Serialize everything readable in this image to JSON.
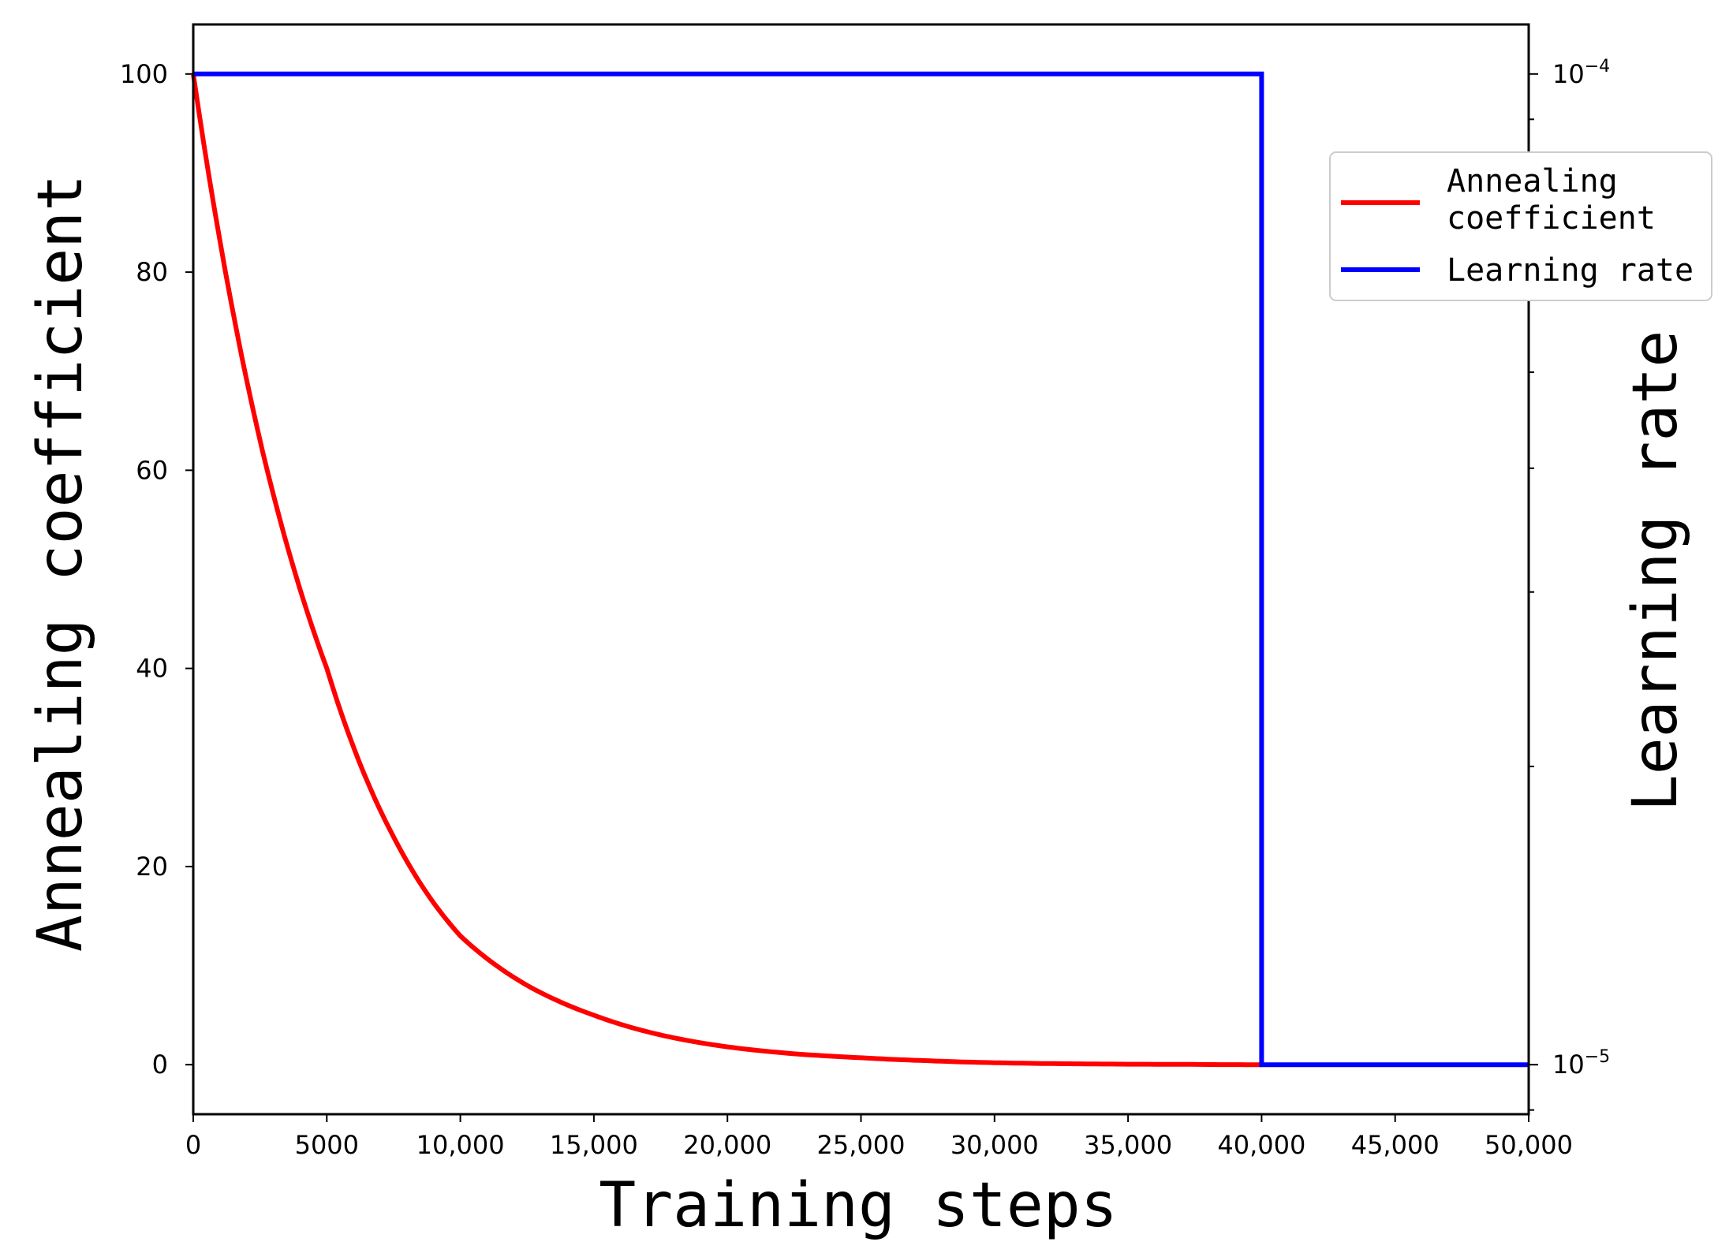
{
  "chart_data": {
    "type": "line",
    "xlabel": "Training steps",
    "ylabel_left": "Annealing coefficient",
    "ylabel_right": "Learning rate",
    "xlim": [
      0,
      50000
    ],
    "ylim_left": [
      -5,
      105
    ],
    "ylim_right": [
      1e-05,
      0.0001
    ],
    "y_right_scale": "log",
    "x_ticks": [
      {
        "value": 0,
        "label": "0"
      },
      {
        "value": 5000,
        "label": "5000"
      },
      {
        "value": 10000,
        "label": "10,000"
      },
      {
        "value": 15000,
        "label": "15,000"
      },
      {
        "value": 20000,
        "label": "20,000"
      },
      {
        "value": 25000,
        "label": "25,000"
      },
      {
        "value": 30000,
        "label": "30,000"
      },
      {
        "value": 35000,
        "label": "35,000"
      },
      {
        "value": 40000,
        "label": "40,000"
      },
      {
        "value": 45000,
        "label": "45,000"
      },
      {
        "value": 50000,
        "label": "50,000"
      }
    ],
    "y_left_ticks": [
      {
        "value": 0,
        "label": "0"
      },
      {
        "value": 20,
        "label": "20"
      },
      {
        "value": 40,
        "label": "40"
      },
      {
        "value": 60,
        "label": "60"
      },
      {
        "value": 80,
        "label": "80"
      },
      {
        "value": 100,
        "label": "100"
      }
    ],
    "y_right_ticks": [
      {
        "value": 1e-05,
        "base": "10",
        "exp": "−5"
      },
      {
        "value": 0.0001,
        "base": "10",
        "exp": "−4"
      }
    ],
    "series": [
      {
        "name": "Annealing coefficient",
        "axis": "left",
        "color": "#ff0000",
        "x": [
          0,
          2500,
          5000,
          7500,
          10000,
          12500,
          15000,
          17500,
          20000,
          22500,
          25000,
          27500,
          30000,
          32500,
          35000,
          37500,
          40000
        ],
        "y": [
          100,
          63,
          40,
          23,
          13,
          8,
          5,
          3,
          1.8,
          1.1,
          0.7,
          0.4,
          0.2,
          0.1,
          0.05,
          0.03,
          0
        ]
      },
      {
        "name": "Learning rate",
        "axis": "right",
        "color": "#0000ff",
        "x": [
          0,
          40000,
          40000,
          50000
        ],
        "y": [
          0.0001,
          0.0001,
          1e-05,
          1e-05
        ]
      }
    ],
    "legend": {
      "position": "top-right",
      "entries": [
        {
          "lines": [
            "Annealing",
            "coefficient"
          ],
          "color": "#ff0000"
        },
        {
          "lines": [
            "Learning rate"
          ],
          "color": "#0000ff"
        }
      ]
    },
    "grid": false
  }
}
